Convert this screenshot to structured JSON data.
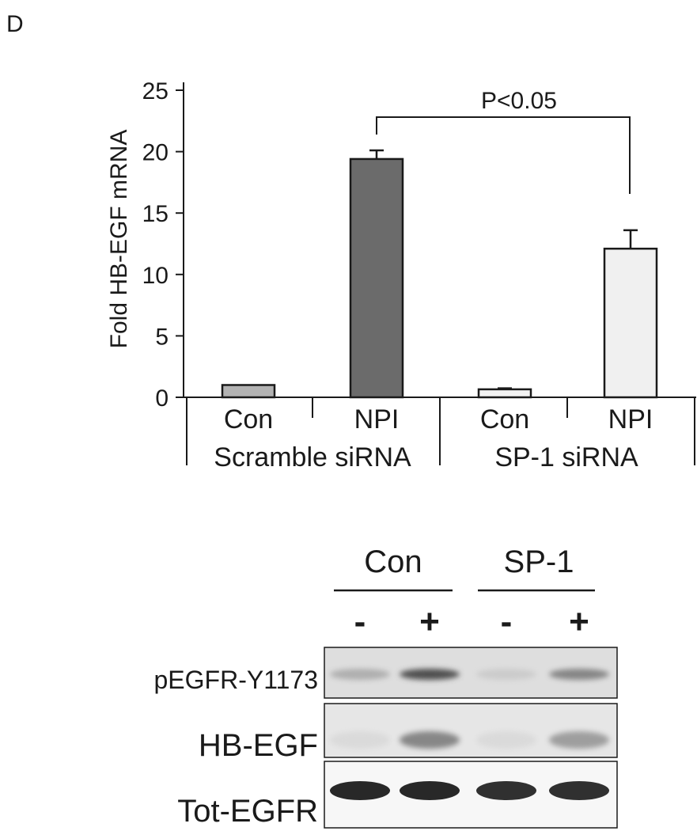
{
  "panel_label": "D",
  "chart_data": {
    "type": "bar",
    "ylabel": "Fold HB-EGF mRNA",
    "ylim": [
      0,
      25
    ],
    "yticks": [
      "0",
      "5",
      "10",
      "15",
      "20",
      "25"
    ],
    "categories": [
      "Con",
      "NPI",
      "Con",
      "NPI"
    ],
    "groups": [
      "Scramble siRNA",
      "SP-1 siRNA"
    ],
    "values": [
      1.0,
      19.4,
      0.65,
      12.1
    ],
    "errors": [
      0.0,
      0.7,
      0.08,
      1.5
    ],
    "bar_colors": [
      "#b3b3b3",
      "#6b6b6b",
      "#f2f2f2",
      "#f0f0f0"
    ],
    "annotation": "P<0.05"
  },
  "blot": {
    "groups": [
      "Con",
      "SP-1"
    ],
    "treatments": [
      "-",
      "+",
      "-",
      "+"
    ],
    "rows": [
      {
        "label": "pEGFR-Y1173",
        "intensity": [
          0.35,
          0.75,
          0.15,
          0.55
        ]
      },
      {
        "label": "HB-EGF",
        "intensity": [
          0.05,
          0.55,
          0.05,
          0.45
        ]
      },
      {
        "label": "Tot-EGFR",
        "intensity": [
          1.0,
          1.0,
          0.95,
          0.95
        ]
      }
    ]
  }
}
